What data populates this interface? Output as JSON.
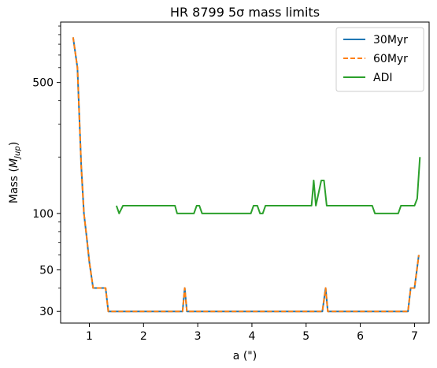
{
  "chart_data": {
    "type": "line",
    "title": "HR 8799 5σ mass limits",
    "xlabel": "a (\")",
    "ylabel": "Mass (M_Jup)",
    "ylabel_main": "Mass (",
    "ylabel_sym": "M",
    "ylabel_sub": "Jup",
    "ylabel_close": ")",
    "xscale": "linear",
    "yscale": "log",
    "xlim": [
      0.47,
      7.27
    ],
    "ylim": [
      26,
      1050
    ],
    "xticks": [
      1,
      2,
      3,
      4,
      5,
      6,
      7
    ],
    "xtick_labels": [
      "1",
      "2",
      "3",
      "4",
      "5",
      "6",
      "7"
    ],
    "yticks": [
      30,
      50,
      100,
      500
    ],
    "ytick_labels": [
      "30",
      "50",
      "100",
      "500"
    ],
    "grid": false,
    "legend": {
      "position": "top-right",
      "entries": [
        "30Myr",
        "60Myr",
        "ADI"
      ]
    },
    "series": [
      {
        "name": "30Myr",
        "color": "#1f77b4",
        "style": "solid",
        "x": [
          0.7,
          0.78,
          0.85,
          0.9,
          0.95,
          1.0,
          1.07,
          1.14,
          1.2,
          1.3,
          1.35,
          2.72,
          2.76,
          2.8,
          5.3,
          5.36,
          5.4,
          6.88,
          6.93,
          7.0,
          7.08
        ],
        "y": [
          870,
          600,
          180,
          100,
          75,
          55,
          40,
          40,
          40,
          40,
          30,
          30,
          40,
          30,
          30,
          40,
          30,
          30,
          40,
          40,
          60
        ]
      },
      {
        "name": "60Myr",
        "color": "#ff7f0e",
        "style": "dashed",
        "x": [
          0.7,
          0.78,
          0.85,
          0.9,
          0.95,
          1.0,
          1.07,
          1.14,
          1.2,
          1.3,
          1.35,
          2.72,
          2.76,
          2.8,
          5.3,
          5.36,
          5.4,
          6.88,
          6.93,
          7.0,
          7.08
        ],
        "y": [
          870,
          600,
          180,
          100,
          75,
          55,
          40,
          40,
          40,
          40,
          30,
          30,
          40,
          30,
          30,
          40,
          30,
          30,
          40,
          40,
          60
        ]
      },
      {
        "name": "ADI",
        "color": "#2ca02c",
        "style": "solid",
        "x": [
          1.5,
          1.55,
          1.62,
          2.58,
          2.62,
          2.93,
          2.98,
          3.03,
          3.08,
          3.98,
          4.03,
          4.1,
          4.15,
          4.2,
          4.25,
          5.1,
          5.14,
          5.18,
          5.28,
          5.33,
          5.38,
          5.42,
          6.22,
          6.27,
          6.7,
          6.75,
          7.0,
          7.05,
          7.1
        ],
        "y": [
          110,
          100,
          110,
          110,
          100,
          100,
          110,
          110,
          100,
          100,
          110,
          110,
          100,
          100,
          110,
          110,
          150,
          110,
          150,
          150,
          110,
          110,
          110,
          100,
          100,
          110,
          110,
          120,
          200
        ]
      }
    ]
  }
}
